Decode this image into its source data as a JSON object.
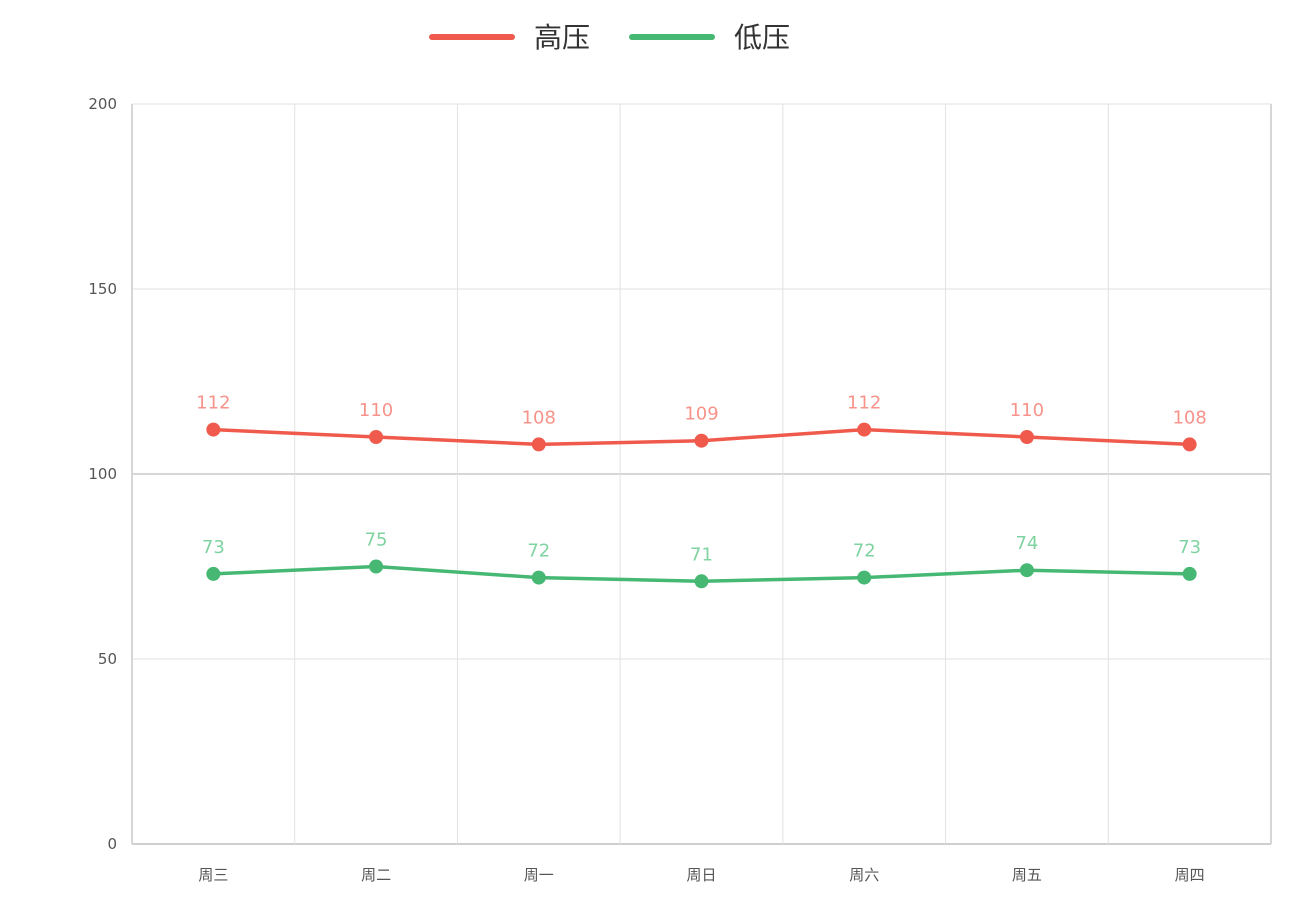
{
  "chart_data": {
    "type": "line",
    "title": "",
    "xlabel": "",
    "ylabel": "",
    "categories": [
      "周三",
      "周二",
      "周一",
      "周日",
      "周六",
      "周五",
      "周四"
    ],
    "ylim": [
      0,
      200
    ],
    "yticks": [
      "0",
      "50",
      "100",
      "150",
      "200"
    ],
    "grid": true,
    "legend_position": "top-center",
    "series": [
      {
        "name": "高压",
        "color": "#ef5a4c",
        "label_color": "#f7938a",
        "values": [
          112,
          110,
          108,
          109,
          112,
          110,
          108
        ]
      },
      {
        "name": "低压",
        "color": "#46b873",
        "label_color": "#7fd3a1",
        "values": [
          73,
          75,
          72,
          71,
          72,
          74,
          73
        ]
      }
    ]
  }
}
